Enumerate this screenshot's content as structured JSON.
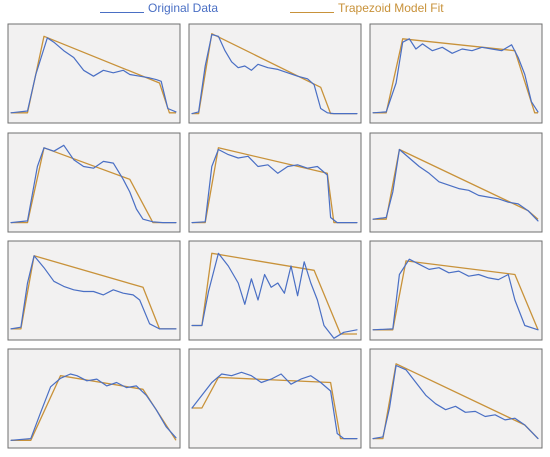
{
  "legend": {
    "original_label": "Original Data",
    "trapezoid_label": "Trapezoid Model Fit"
  },
  "colors": {
    "original": "#4a6fc4",
    "trapezoid": "#c8923a"
  },
  "chart_data": [
    {
      "type": "line",
      "series": [
        {
          "name": "Original Data",
          "x": [
            0,
            0.1,
            0.15,
            0.22,
            0.26,
            0.32,
            0.38,
            0.44,
            0.5,
            0.56,
            0.62,
            0.68,
            0.72,
            0.78,
            0.84,
            0.88,
            0.91,
            0.95,
            1.0
          ],
          "y": [
            0.05,
            0.07,
            0.5,
            0.93,
            0.88,
            0.78,
            0.7,
            0.55,
            0.48,
            0.55,
            0.52,
            0.55,
            0.5,
            0.48,
            0.46,
            0.44,
            0.42,
            0.1,
            0.06
          ]
        },
        {
          "name": "Trapezoid Model Fit",
          "x": [
            0,
            0.1,
            0.2,
            0.9,
            0.96,
            1.0
          ],
          "y": [
            0.05,
            0.05,
            0.95,
            0.4,
            0.05,
            0.05
          ]
        }
      ]
    },
    {
      "type": "line",
      "series": [
        {
          "name": "Original Data",
          "x": [
            0,
            0.04,
            0.08,
            0.12,
            0.16,
            0.2,
            0.24,
            0.28,
            0.32,
            0.36,
            0.4,
            0.46,
            0.52,
            0.58,
            0.64,
            0.7,
            0.74,
            0.78,
            0.82,
            0.86,
            1.0
          ],
          "y": [
            0.04,
            0.06,
            0.6,
            0.97,
            0.95,
            0.78,
            0.65,
            0.58,
            0.6,
            0.55,
            0.62,
            0.58,
            0.56,
            0.52,
            0.48,
            0.45,
            0.38,
            0.1,
            0.05,
            0.04,
            0.04
          ]
        },
        {
          "name": "Trapezoid Model Fit",
          "x": [
            0,
            0.04,
            0.12,
            0.78,
            0.84,
            1.0
          ],
          "y": [
            0.04,
            0.04,
            0.98,
            0.35,
            0.04,
            0.04
          ]
        }
      ]
    },
    {
      "type": "line",
      "series": [
        {
          "name": "Original Data",
          "x": [
            0,
            0.08,
            0.14,
            0.18,
            0.22,
            0.26,
            0.3,
            0.36,
            0.42,
            0.48,
            0.54,
            0.6,
            0.66,
            0.72,
            0.78,
            0.84,
            0.88,
            0.92,
            0.96,
            1.0
          ],
          "y": [
            0.05,
            0.06,
            0.4,
            0.88,
            0.92,
            0.8,
            0.86,
            0.78,
            0.82,
            0.75,
            0.8,
            0.78,
            0.82,
            0.8,
            0.78,
            0.85,
            0.7,
            0.5,
            0.18,
            0.06
          ]
        },
        {
          "name": "Trapezoid Model Fit",
          "x": [
            0,
            0.08,
            0.18,
            0.86,
            0.98,
            1.0
          ],
          "y": [
            0.05,
            0.05,
            0.92,
            0.78,
            0.05,
            0.05
          ]
        }
      ]
    },
    {
      "type": "line",
      "series": [
        {
          "name": "Original Data",
          "x": [
            0,
            0.1,
            0.16,
            0.2,
            0.26,
            0.32,
            0.38,
            0.44,
            0.5,
            0.56,
            0.62,
            0.68,
            0.72,
            0.76,
            0.8,
            0.86,
            0.92,
            1.0
          ],
          "y": [
            0.04,
            0.06,
            0.7,
            0.92,
            0.88,
            0.95,
            0.78,
            0.7,
            0.68,
            0.76,
            0.74,
            0.55,
            0.4,
            0.2,
            0.08,
            0.05,
            0.04,
            0.04
          ]
        },
        {
          "name": "Trapezoid Model Fit",
          "x": [
            0,
            0.1,
            0.2,
            0.72,
            0.86,
            1.0
          ],
          "y": [
            0.04,
            0.04,
            0.92,
            0.55,
            0.04,
            0.04
          ]
        }
      ]
    },
    {
      "type": "line",
      "series": [
        {
          "name": "Original Data",
          "x": [
            0,
            0.08,
            0.12,
            0.16,
            0.22,
            0.28,
            0.34,
            0.4,
            0.46,
            0.52,
            0.58,
            0.64,
            0.7,
            0.76,
            0.82,
            0.84,
            0.88,
            0.94,
            1.0
          ],
          "y": [
            0.04,
            0.05,
            0.7,
            0.9,
            0.84,
            0.8,
            0.82,
            0.7,
            0.72,
            0.62,
            0.7,
            0.72,
            0.68,
            0.7,
            0.6,
            0.1,
            0.04,
            0.04,
            0.04
          ]
        },
        {
          "name": "Trapezoid Model Fit",
          "x": [
            0,
            0.08,
            0.16,
            0.82,
            0.86,
            1.0
          ],
          "y": [
            0.04,
            0.04,
            0.92,
            0.62,
            0.04,
            0.04
          ]
        }
      ]
    },
    {
      "type": "line",
      "series": [
        {
          "name": "Original Data",
          "x": [
            0,
            0.08,
            0.12,
            0.16,
            0.22,
            0.28,
            0.34,
            0.4,
            0.46,
            0.52,
            0.58,
            0.64,
            0.7,
            0.76,
            0.82,
            0.88,
            0.94,
            1.0
          ],
          "y": [
            0.08,
            0.1,
            0.4,
            0.9,
            0.8,
            0.7,
            0.62,
            0.52,
            0.48,
            0.44,
            0.42,
            0.36,
            0.34,
            0.32,
            0.28,
            0.26,
            0.18,
            0.06
          ]
        },
        {
          "name": "Trapezoid Model Fit",
          "x": [
            0,
            0.08,
            0.16,
            0.94,
            1.0
          ],
          "y": [
            0.08,
            0.08,
            0.9,
            0.18,
            0.08
          ]
        }
      ]
    },
    {
      "type": "line",
      "series": [
        {
          "name": "Original Data",
          "x": [
            0,
            0.06,
            0.1,
            0.14,
            0.2,
            0.26,
            0.32,
            0.38,
            0.44,
            0.5,
            0.56,
            0.62,
            0.68,
            0.74,
            0.78,
            0.84,
            0.9,
            1.0
          ],
          "y": [
            0.06,
            0.08,
            0.6,
            0.92,
            0.78,
            0.62,
            0.56,
            0.52,
            0.5,
            0.5,
            0.46,
            0.52,
            0.48,
            0.46,
            0.4,
            0.12,
            0.06,
            0.06
          ]
        },
        {
          "name": "Trapezoid Model Fit",
          "x": [
            0,
            0.06,
            0.14,
            0.8,
            0.9,
            1.0
          ],
          "y": [
            0.06,
            0.06,
            0.92,
            0.55,
            0.06,
            0.06
          ]
        }
      ]
    },
    {
      "type": "line",
      "series": [
        {
          "name": "Original Data",
          "x": [
            0,
            0.06,
            0.1,
            0.16,
            0.22,
            0.28,
            0.32,
            0.36,
            0.4,
            0.44,
            0.48,
            0.52,
            0.56,
            0.6,
            0.64,
            0.68,
            0.72,
            0.76,
            0.8,
            0.86,
            0.92,
            1.0
          ],
          "y": [
            0.1,
            0.1,
            0.5,
            0.95,
            0.8,
            0.6,
            0.35,
            0.65,
            0.4,
            0.7,
            0.55,
            0.6,
            0.48,
            0.8,
            0.45,
            0.85,
            0.6,
            0.4,
            0.1,
            -0.05,
            0.02,
            0.05
          ]
        },
        {
          "name": "Trapezoid Model Fit",
          "x": [
            0,
            0.06,
            0.12,
            0.74,
            0.9,
            1.0
          ],
          "y": [
            0.1,
            0.1,
            0.95,
            0.75,
            0.0,
            0.0
          ]
        }
      ]
    },
    {
      "type": "line",
      "series": [
        {
          "name": "Original Data",
          "x": [
            0,
            0.12,
            0.16,
            0.22,
            0.28,
            0.34,
            0.4,
            0.46,
            0.52,
            0.58,
            0.64,
            0.7,
            0.76,
            0.82,
            0.86,
            0.92,
            1.0
          ],
          "y": [
            0.05,
            0.06,
            0.7,
            0.88,
            0.82,
            0.76,
            0.78,
            0.72,
            0.74,
            0.68,
            0.7,
            0.66,
            0.64,
            0.7,
            0.4,
            0.1,
            0.05
          ]
        },
        {
          "name": "Trapezoid Model Fit",
          "x": [
            0,
            0.12,
            0.2,
            0.86,
            1.0
          ],
          "y": [
            0.05,
            0.05,
            0.86,
            0.7,
            0.05
          ]
        }
      ]
    },
    {
      "type": "line",
      "series": [
        {
          "name": "Original Data",
          "x": [
            0,
            0.12,
            0.18,
            0.24,
            0.3,
            0.36,
            0.4,
            0.46,
            0.52,
            0.58,
            0.64,
            0.7,
            0.76,
            0.82,
            0.88,
            0.94,
            1.0
          ],
          "y": [
            0.02,
            0.04,
            0.35,
            0.65,
            0.75,
            0.8,
            0.78,
            0.72,
            0.74,
            0.66,
            0.7,
            0.64,
            0.66,
            0.55,
            0.38,
            0.18,
            0.05
          ]
        },
        {
          "name": "Trapezoid Model Fit",
          "x": [
            0,
            0.12,
            0.3,
            0.8,
            1.0
          ],
          "y": [
            0.02,
            0.02,
            0.78,
            0.62,
            0.02
          ]
        }
      ]
    },
    {
      "type": "line",
      "series": [
        {
          "name": "Original Data",
          "x": [
            0,
            0.06,
            0.12,
            0.18,
            0.24,
            0.3,
            0.36,
            0.42,
            0.48,
            0.54,
            0.6,
            0.66,
            0.72,
            0.78,
            0.84,
            0.88,
            0.92,
            1.0
          ],
          "y": [
            0.4,
            0.55,
            0.7,
            0.8,
            0.78,
            0.82,
            0.78,
            0.7,
            0.74,
            0.8,
            0.68,
            0.74,
            0.78,
            0.7,
            0.6,
            0.1,
            0.04,
            0.04
          ]
        },
        {
          "name": "Trapezoid Model Fit",
          "x": [
            0,
            0.06,
            0.16,
            0.84,
            0.9,
            1.0
          ],
          "y": [
            0.4,
            0.4,
            0.76,
            0.7,
            0.04,
            0.04
          ]
        }
      ]
    },
    {
      "type": "line",
      "series": [
        {
          "name": "Original Data",
          "x": [
            0,
            0.06,
            0.1,
            0.14,
            0.2,
            0.26,
            0.32,
            0.38,
            0.44,
            0.5,
            0.56,
            0.62,
            0.68,
            0.74,
            0.8,
            0.86,
            0.92,
            1.0
          ],
          "y": [
            0.04,
            0.06,
            0.4,
            0.9,
            0.85,
            0.7,
            0.55,
            0.45,
            0.38,
            0.42,
            0.35,
            0.36,
            0.3,
            0.32,
            0.26,
            0.28,
            0.2,
            0.04
          ]
        },
        {
          "name": "Trapezoid Model Fit",
          "x": [
            0,
            0.06,
            0.14,
            0.92,
            1.0
          ],
          "y": [
            0.04,
            0.04,
            0.92,
            0.2,
            0.04
          ]
        }
      ]
    }
  ]
}
